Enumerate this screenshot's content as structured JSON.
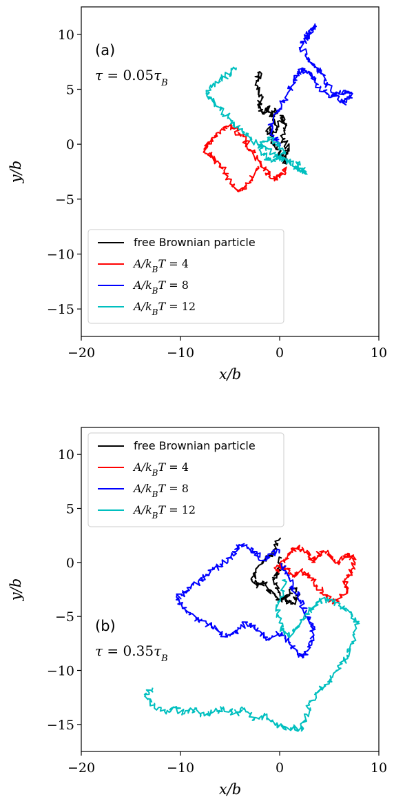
{
  "chart_data": [
    {
      "type": "line",
      "panel_label": "(a)",
      "annotation": "τ = 0.05τ_B",
      "xlabel": "x/b",
      "ylabel": "y/b",
      "xlim": [
        -20,
        10
      ],
      "ylim": [
        -17.5,
        12.5
      ],
      "xticks": [
        -20,
        -10,
        0,
        10
      ],
      "xtick_labels": [
        "−20",
        "−10",
        "0",
        "10"
      ],
      "yticks": [
        10,
        5,
        0,
        -5,
        -10,
        -15
      ],
      "ytick_labels": [
        "10",
        "5",
        "0",
        "−5",
        "−10",
        "−15"
      ],
      "grid": false,
      "legend_position": "bottom-left",
      "series": [
        {
          "name": "free Brownian particle",
          "color": "#000000",
          "x": [
            -2.4,
            -2.0,
            -2.3,
            -1.8,
            -2.1,
            -1.6,
            -1.2,
            -0.8,
            -0.4,
            -0.7,
            -0.1,
            0.3,
            0.6,
            0.2,
            0.5,
            0.8,
            0.4,
            0.7,
            0.2,
            -0.3,
            -0.8,
            -1.2,
            -0.7,
            -0.3
          ],
          "y": [
            5.8,
            6.6,
            5.0,
            4.2,
            3.4,
            2.8,
            3.4,
            2.6,
            3.2,
            2.2,
            1.6,
            2.6,
            1.8,
            0.8,
            0.2,
            -0.6,
            -1.2,
            -1.8,
            -1.0,
            -0.4,
            0.4,
            1.4,
            0.8,
            1.6
          ]
        },
        {
          "name": "A/k_BT = 4",
          "color": "#ff0000",
          "x": [
            -2.2,
            -2.8,
            -3.4,
            -4.2,
            -5.0,
            -5.6,
            -6.4,
            -7.0,
            -7.6,
            -7.2,
            -6.6,
            -6.0,
            -5.2,
            -4.6,
            -3.9,
            -3.4,
            -2.8,
            -2.2,
            -1.6,
            -1.0,
            -0.4,
            0.2,
            0.6
          ],
          "y": [
            -2.0,
            -3.0,
            -3.8,
            -4.2,
            -3.6,
            -2.4,
            -1.6,
            -1.0,
            -0.6,
            0.2,
            0.6,
            1.2,
            1.6,
            1.4,
            0.8,
            0.2,
            -0.6,
            -1.4,
            -2.2,
            -2.8,
            -3.2,
            -2.6,
            -2.2
          ]
        },
        {
          "name": "A/k_BT = 8",
          "color": "#0000ff",
          "x": [
            0.0,
            -0.6,
            -1.0,
            -0.4,
            0.2,
            0.8,
            1.4,
            1.9,
            2.4,
            3.0,
            3.6,
            4.4,
            5.2,
            6.0,
            6.6,
            7.1,
            7.0,
            6.4,
            5.6,
            4.8,
            4.2,
            3.6,
            3.0,
            2.6,
            2.1,
            2.7,
            3.3,
            3.6,
            3.1,
            2.6
          ],
          "y": [
            -0.2,
            0.8,
            1.8,
            2.8,
            3.6,
            4.6,
            5.6,
            6.4,
            6.8,
            6.4,
            5.6,
            4.8,
            4.4,
            4.6,
            4.9,
            4.6,
            4.2,
            3.8,
            4.4,
            5.6,
            6.4,
            7.0,
            7.6,
            8.2,
            8.8,
            9.6,
            10.4,
            10.8,
            10.2,
            9.6
          ]
        },
        {
          "name": "A/k_BT = 12",
          "color": "#00bfbf",
          "x": [
            -4.4,
            -5.0,
            -5.8,
            -6.6,
            -7.4,
            -7.0,
            -6.2,
            -5.4,
            -4.6,
            -3.8,
            -3.0,
            -2.2,
            -1.4,
            -0.6,
            0.0,
            0.4,
            -0.4,
            -1.2,
            -2.0,
            -1.6,
            -0.8,
            0.0,
            0.8,
            1.6,
            2.2,
            2.6,
            2.2,
            1.6
          ],
          "y": [
            6.9,
            6.4,
            6.0,
            5.4,
            4.6,
            4.2,
            3.4,
            2.6,
            2.0,
            1.2,
            0.6,
            0.0,
            -0.4,
            -0.8,
            -1.4,
            -0.6,
            0.2,
            0.6,
            -0.2,
            -1.0,
            -1.6,
            -1.2,
            -1.6,
            -2.0,
            -2.4,
            -2.6,
            -2.2,
            -1.6
          ]
        }
      ],
      "legend": [
        {
          "label": "free Brownian particle",
          "style": "sans"
        },
        {
          "label": "A/k_BT = 4",
          "style": "math"
        },
        {
          "label": "A/k_BT = 8",
          "style": "math"
        },
        {
          "label": "A/k_BT = 12",
          "style": "math"
        }
      ]
    },
    {
      "type": "line",
      "panel_label": "(b)",
      "annotation": "τ = 0.35τ_B",
      "xlabel": "x/b",
      "ylabel": "y/b",
      "xlim": [
        -20,
        10
      ],
      "ylim": [
        -17.5,
        12.5
      ],
      "xticks": [
        -20,
        -10,
        0,
        10
      ],
      "xtick_labels": [
        "−20",
        "−10",
        "0",
        "10"
      ],
      "yticks": [
        10,
        5,
        0,
        -5,
        -10,
        -15
      ],
      "ytick_labels": [
        "10",
        "5",
        "0",
        "−5",
        "−10",
        "−15"
      ],
      "grid": false,
      "legend_position": "top-left",
      "series": [
        {
          "name": "free Brownian particle",
          "color": "#000000",
          "x": [
            0.0,
            -0.4,
            -1.0,
            -1.6,
            -2.4,
            -2.8,
            -2.2,
            -1.6,
            -1.0,
            -0.4,
            0.2,
            0.8,
            1.4,
            1.8,
            1.3,
            0.6,
            0.0,
            -0.6,
            -0.2,
            0.2
          ],
          "y": [
            2.2,
            1.4,
            0.6,
            0.2,
            -0.8,
            -1.6,
            -2.2,
            -1.8,
            -2.6,
            -3.2,
            -3.6,
            -3.0,
            -2.4,
            -3.2,
            -3.8,
            -3.4,
            -2.8,
            -1.6,
            -0.8,
            0.4
          ]
        },
        {
          "name": "A/k_BT = 4",
          "color": "#ff0000",
          "x": [
            0.0,
            0.6,
            1.2,
            1.8,
            2.4,
            3.0,
            3.4,
            3.8,
            4.4,
            5.2,
            5.8,
            6.4,
            7.0,
            7.6,
            7.2,
            6.6,
            6.8,
            6.2,
            5.4,
            4.6,
            3.8,
            3.0,
            2.2,
            1.4,
            0.6,
            0.0,
            -0.4
          ],
          "y": [
            -0.4,
            0.4,
            1.0,
            1.4,
            1.2,
            0.6,
            0.0,
            0.6,
            1.0,
            0.6,
            0.0,
            0.6,
            0.8,
            0.0,
            -0.8,
            -1.6,
            -2.4,
            -3.2,
            -3.8,
            -3.0,
            -2.2,
            -1.4,
            -0.8,
            -1.2,
            -0.6,
            -0.2,
            -0.8
          ]
        },
        {
          "name": "A/k_BT = 8",
          "color": "#0000ff",
          "x": [
            0.0,
            -0.8,
            -1.6,
            -2.4,
            -3.2,
            -4.0,
            -4.4,
            -5.0,
            -5.8,
            -6.6,
            -7.4,
            -8.2,
            -9.0,
            -9.6,
            -10.4,
            -9.8,
            -9.0,
            -8.2,
            -7.4,
            -6.6,
            -5.8,
            -5.0,
            -4.2,
            -3.4,
            -2.6,
            -1.8,
            -1.0,
            -0.2,
            0.6,
            1.2,
            1.8,
            2.4,
            2.8,
            3.2,
            3.4,
            3.0,
            2.4,
            1.8,
            1.2,
            0.8,
            0.2
          ],
          "y": [
            1.2,
            0.8,
            0.2,
            0.8,
            1.4,
            1.6,
            1.0,
            0.4,
            -0.2,
            -0.6,
            -1.2,
            -1.8,
            -2.4,
            -2.8,
            -3.2,
            -4.2,
            -4.8,
            -5.2,
            -5.6,
            -6.0,
            -6.6,
            -6.8,
            -6.2,
            -5.6,
            -6.0,
            -6.6,
            -7.0,
            -6.6,
            -7.0,
            -7.8,
            -8.4,
            -8.8,
            -8.2,
            -7.2,
            -6.2,
            -5.2,
            -4.2,
            -3.2,
            -2.2,
            -1.2,
            -0.2
          ]
        },
        {
          "name": "A/k_BT = 12",
          "color": "#00bfbf",
          "x": [
            -12.8,
            -13.6,
            -12.6,
            -11.6,
            -10.6,
            -9.6,
            -8.6,
            -7.6,
            -6.6,
            -5.6,
            -4.6,
            -3.6,
            -2.6,
            -1.6,
            -0.6,
            0.4,
            1.4,
            2.2,
            2.6,
            3.0,
            3.6,
            4.4,
            5.2,
            6.0,
            6.8,
            7.4,
            7.8,
            7.2,
            6.4,
            5.6,
            4.8,
            4.0,
            3.4,
            2.8,
            2.2,
            1.6,
            1.0,
            0.4,
            0.0,
            -0.2,
            0.2,
            0.6
          ],
          "y": [
            -11.6,
            -12.4,
            -13.2,
            -13.8,
            -13.4,
            -14.0,
            -13.6,
            -14.2,
            -13.8,
            -13.6,
            -14.0,
            -13.6,
            -14.6,
            -14.2,
            -14.8,
            -15.4,
            -15.2,
            -15.6,
            -14.4,
            -13.2,
            -12.2,
            -11.6,
            -10.8,
            -9.8,
            -8.6,
            -7.4,
            -5.6,
            -4.8,
            -4.2,
            -3.8,
            -3.4,
            -3.6,
            -4.2,
            -4.8,
            -5.4,
            -6.2,
            -6.8,
            -6.4,
            -5.6,
            -4.4,
            -3.2,
            -1.6
          ]
        }
      ],
      "legend": [
        {
          "label": "free Brownian particle",
          "style": "sans"
        },
        {
          "label": "A/k_BT = 4",
          "style": "math"
        },
        {
          "label": "A/k_BT = 8",
          "style": "math"
        },
        {
          "label": "A/k_BT = 12",
          "style": "math"
        }
      ]
    }
  ]
}
